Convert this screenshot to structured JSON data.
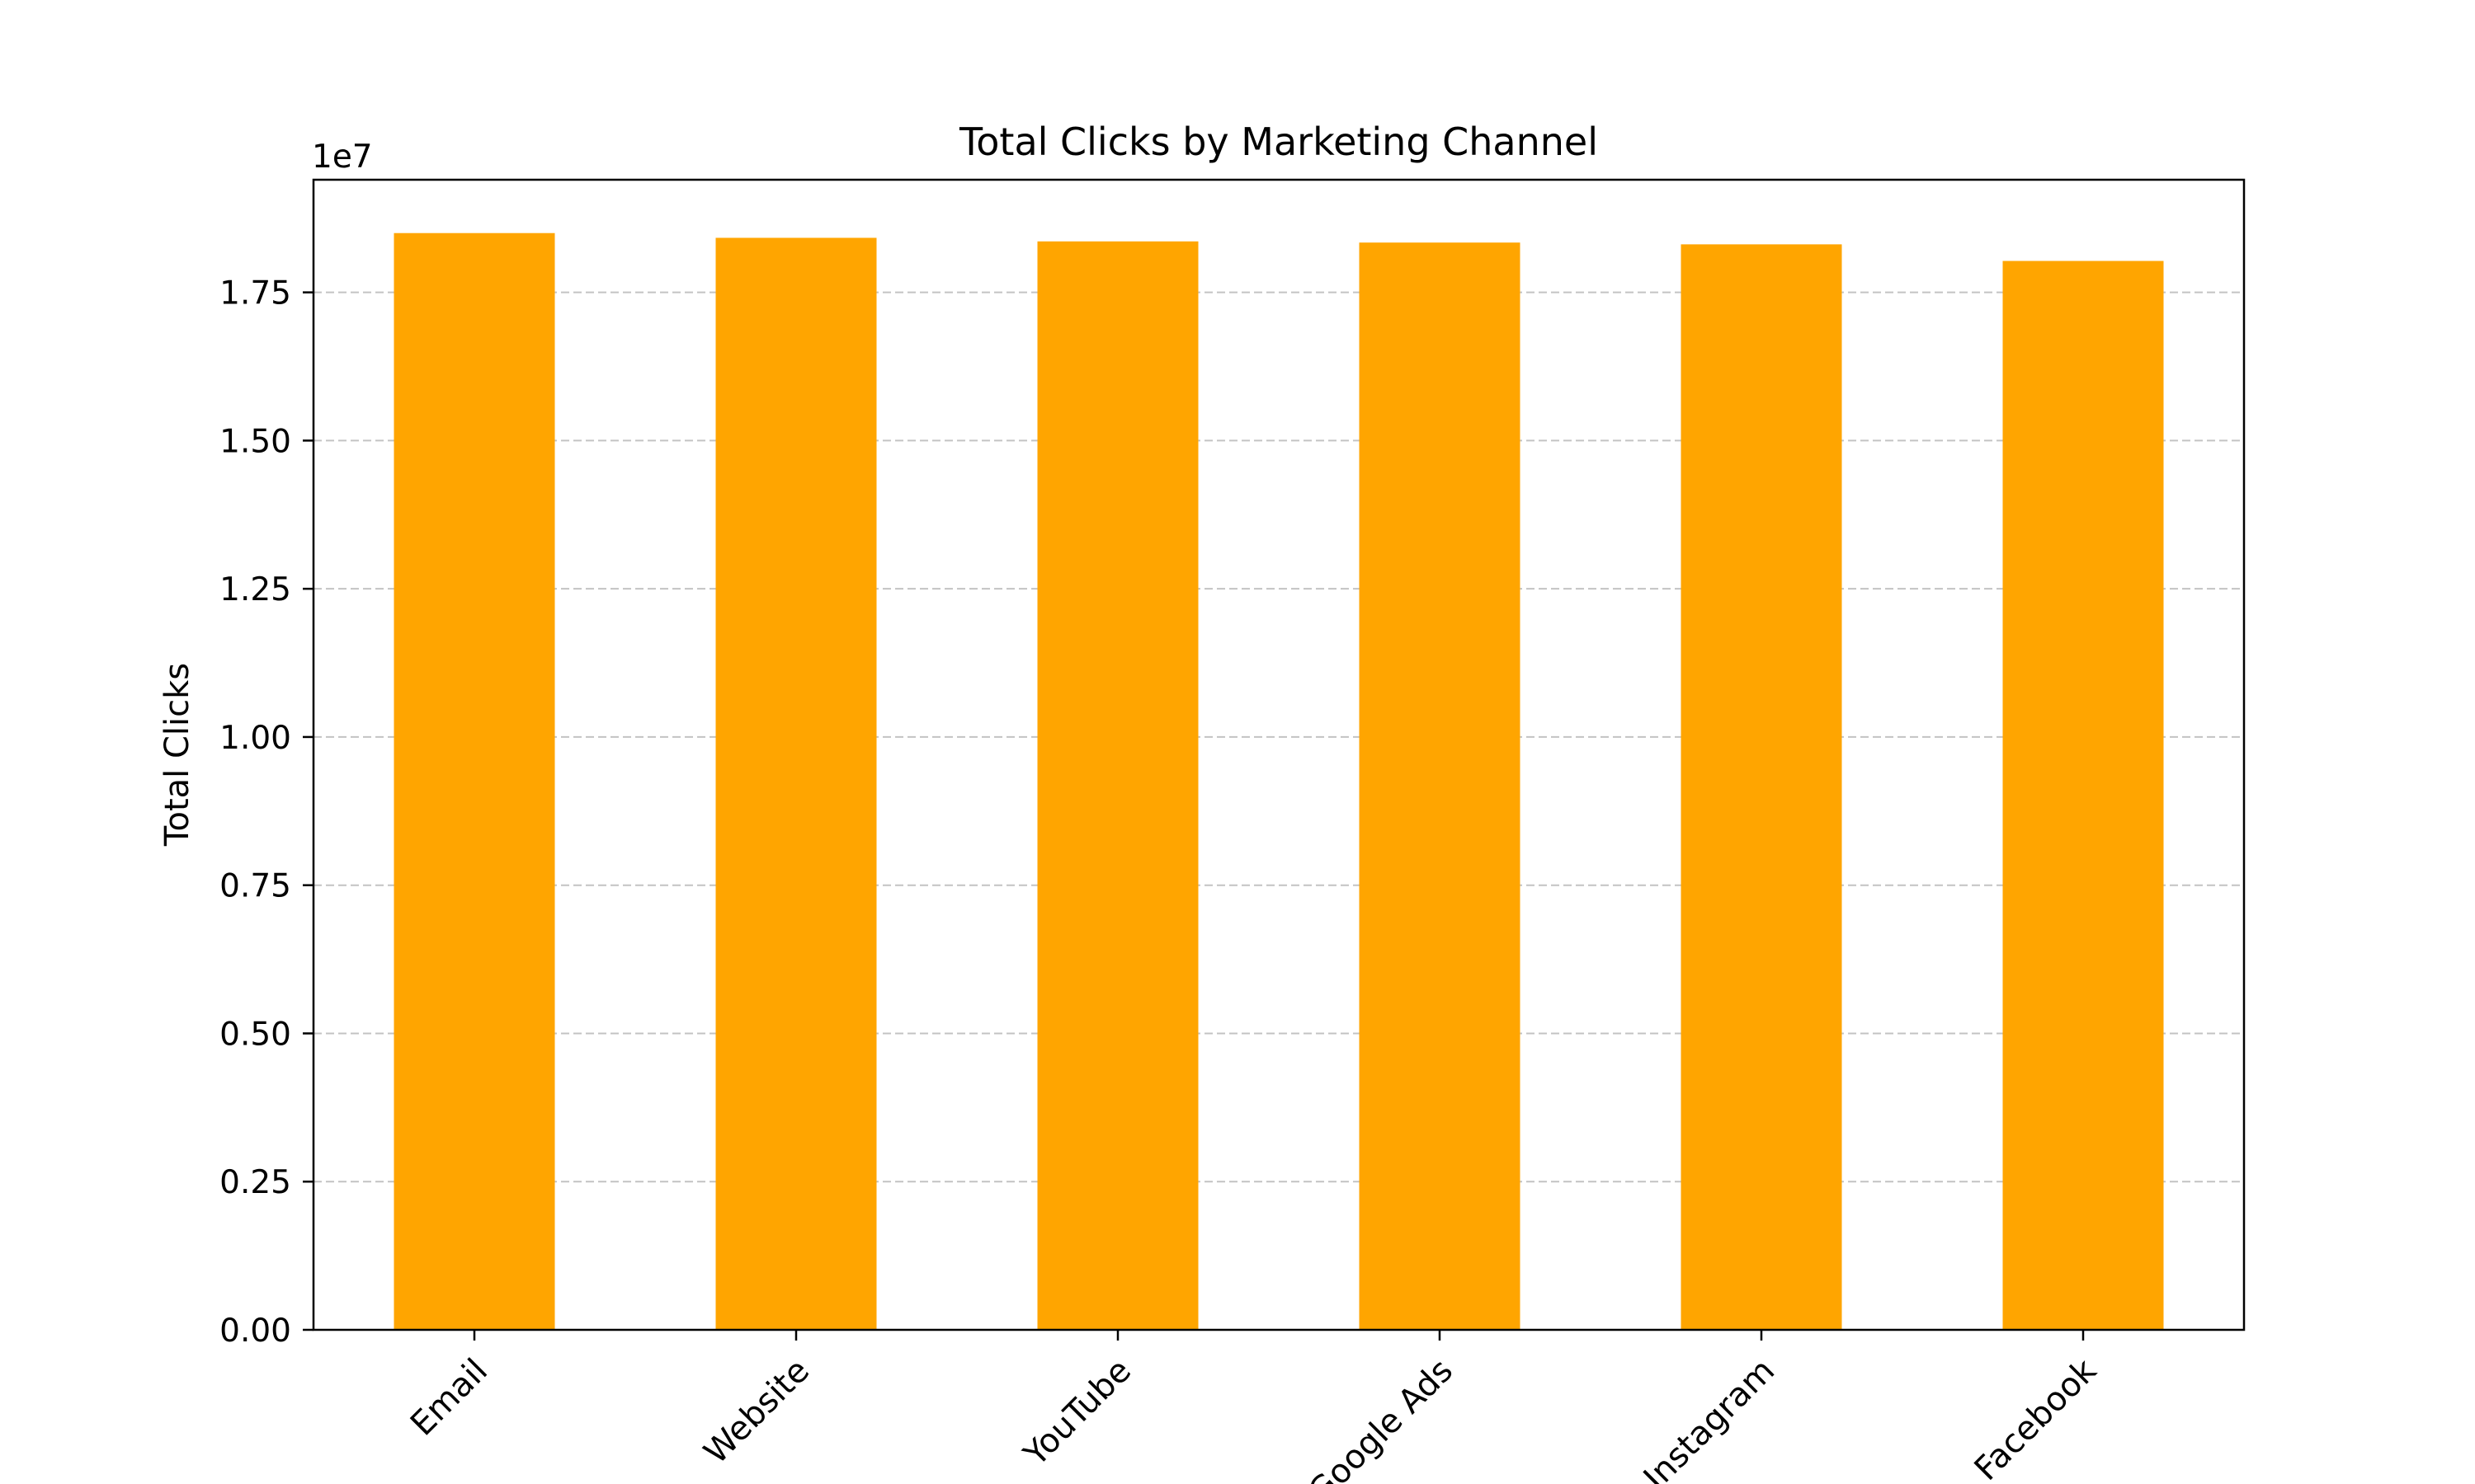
{
  "chart_data": {
    "type": "bar",
    "title": "Total Clicks by Marketing Channel",
    "xlabel": "",
    "ylabel": "Total Clicks",
    "offset_label": "1e7",
    "categories": [
      "Email",
      "Website",
      "YouTube",
      "Google Ads",
      "Instagram",
      "Facebook"
    ],
    "values": [
      18500000,
      18420000,
      18360000,
      18340000,
      18310000,
      18030000
    ],
    "ylim": [
      0,
      19400000
    ],
    "yticks": [
      0,
      2500000,
      5000000,
      7500000,
      10000000,
      12500000,
      15000000,
      17500000
    ],
    "ytick_labels": [
      "0.00",
      "0.25",
      "0.50",
      "0.75",
      "1.00",
      "1.25",
      "1.50",
      "1.75"
    ],
    "bar_color": "#FFA500",
    "grid": "y-dashed",
    "legend": "none"
  }
}
